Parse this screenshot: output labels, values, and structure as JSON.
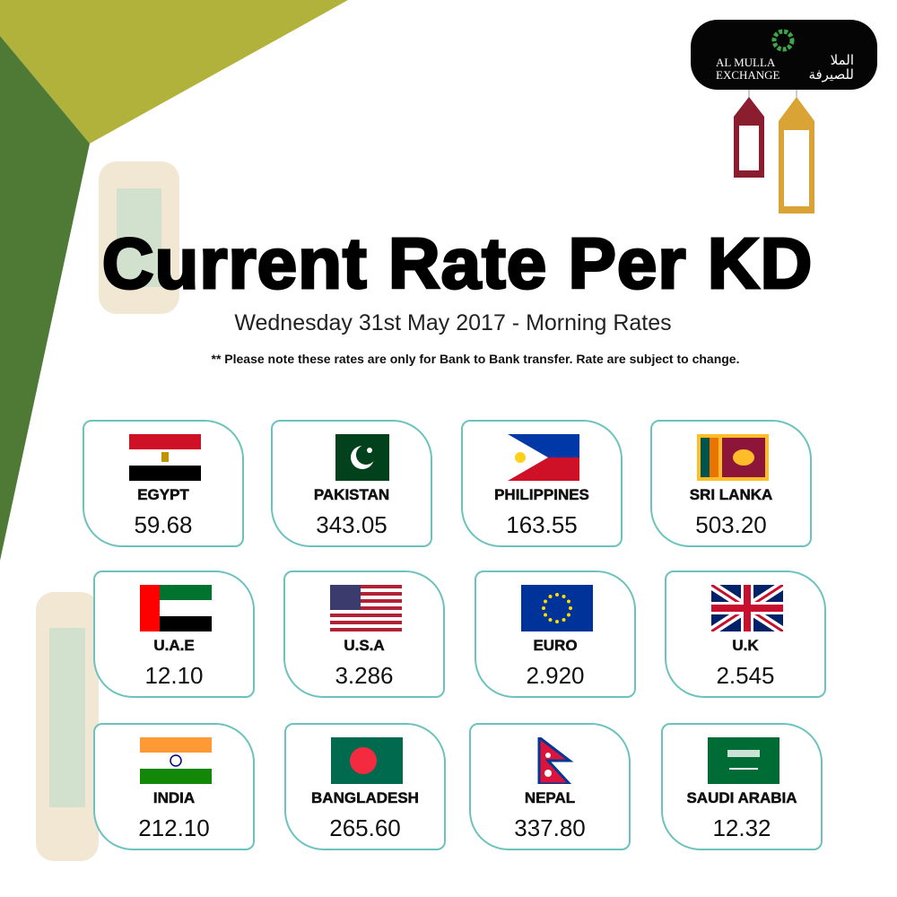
{
  "logo": {
    "english": [
      "AL MULLA",
      "EXCHANGE"
    ],
    "arabic": [
      "الملا",
      "للصيرفة"
    ]
  },
  "title": "Current Rate Per KD",
  "subtitle": "Wednesday 31st May 2017 - Morning Rates",
  "note": "** Please note these rates are only for Bank to Bank transfer. Rate are subject to change.",
  "cards": [
    {
      "country": "EGYPT",
      "rate": "59.68"
    },
    {
      "country": "PAKISTAN",
      "rate": "343.05"
    },
    {
      "country": "PHILIPPINES",
      "rate": "163.55"
    },
    {
      "country": "SRI LANKA",
      "rate": "503.20"
    },
    {
      "country": "U.A.E",
      "rate": "12.10"
    },
    {
      "country": "U.S.A",
      "rate": "3.286"
    },
    {
      "country": "EURO",
      "rate": "2.920"
    },
    {
      "country": "U.K",
      "rate": "2.545"
    },
    {
      "country": "INDIA",
      "rate": "212.10"
    },
    {
      "country": "BANGLADESH",
      "rate": "265.60"
    },
    {
      "country": "NEPAL",
      "rate": "337.80"
    },
    {
      "country": "SAUDI ARABIA",
      "rate": "12.32"
    }
  ]
}
